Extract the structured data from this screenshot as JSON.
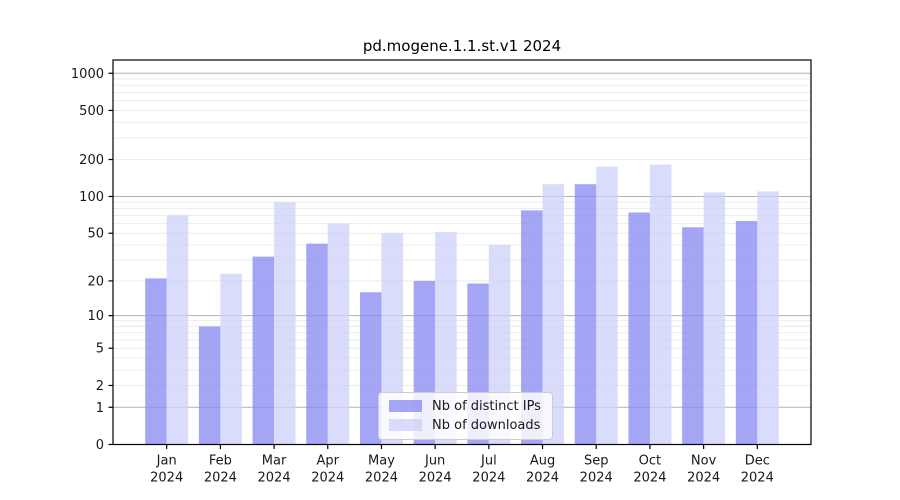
{
  "chart_data": {
    "type": "bar",
    "title": "pd.mogene.1.1.st.v1 2024",
    "categories": [
      "Jan",
      "Feb",
      "Mar",
      "Apr",
      "May",
      "Jun",
      "Jul",
      "Aug",
      "Sep",
      "Oct",
      "Nov",
      "Dec"
    ],
    "xtick_year": "2024",
    "series": [
      {
        "name": "Nb of distinct IPs",
        "color": "#8588f2",
        "values": [
          21,
          8,
          32,
          41,
          16,
          20,
          19,
          77,
          126,
          74,
          56,
          63
        ]
      },
      {
        "name": "Nb of downloads",
        "color": "#cdd0f9",
        "values": [
          70,
          23,
          90,
          60,
          50,
          51,
          40,
          126,
          175,
          182,
          108,
          110
        ]
      }
    ],
    "yscale": "log1p",
    "yticks": [
      0,
      1,
      2,
      5,
      10,
      20,
      50,
      100,
      200,
      500,
      1000
    ],
    "ylim": [
      0,
      1280
    ],
    "grid": "major decades solid, log minors faint",
    "legend_position": "lower center",
    "colors": {
      "major_grid": "#b3b3b3",
      "minor_grid": "#ececec",
      "spine": "#000000",
      "text": "#191919",
      "background": "#ffffff"
    }
  }
}
